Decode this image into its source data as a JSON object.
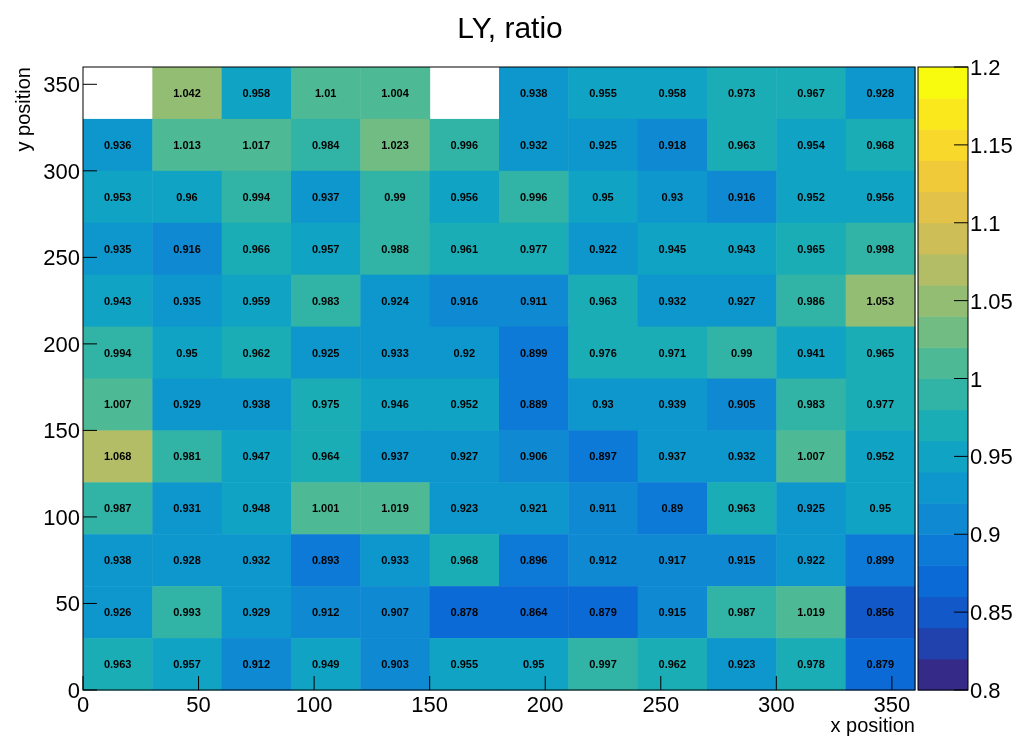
{
  "chart_data": {
    "type": "heatmap",
    "title": "LY, ratio",
    "xlabel": "x position",
    "ylabel": "y position",
    "xlim": [
      0,
      360
    ],
    "xticks": [
      0,
      50,
      100,
      150,
      200,
      250,
      300,
      350
    ],
    "ylim": [
      0,
      360
    ],
    "yticks": [
      0,
      50,
      100,
      150,
      200,
      250,
      300,
      350
    ],
    "clim": [
      0.8,
      1.2
    ],
    "cticks": [
      0.8,
      0.85,
      0.9,
      0.95,
      1,
      1.05,
      1.1,
      1.15,
      1.2
    ],
    "data_labels": true,
    "cells": [
      [
        null,
        1.042,
        0.958,
        1.01,
        1.004,
        null,
        0.938,
        0.955,
        0.958,
        0.973,
        0.967,
        0.928
      ],
      [
        0.936,
        1.013,
        1.017,
        0.984,
        1.023,
        0.996,
        0.932,
        0.925,
        0.918,
        0.963,
        0.954,
        0.968
      ],
      [
        0.953,
        0.96,
        0.994,
        0.937,
        0.99,
        0.956,
        0.996,
        0.95,
        0.93,
        0.916,
        0.952,
        0.956
      ],
      [
        0.935,
        0.916,
        0.966,
        0.957,
        0.988,
        0.961,
        0.977,
        0.922,
        0.945,
        0.943,
        0.965,
        0.998
      ],
      [
        0.943,
        0.935,
        0.959,
        0.983,
        0.924,
        0.916,
        0.911,
        0.963,
        0.932,
        0.927,
        0.986,
        1.053
      ],
      [
        0.994,
        0.95,
        0.962,
        0.925,
        0.933,
        0.92,
        0.899,
        0.976,
        0.971,
        0.99,
        0.941,
        0.965
      ],
      [
        1.007,
        0.929,
        0.938,
        0.975,
        0.946,
        0.952,
        0.889,
        0.93,
        0.939,
        0.905,
        0.983,
        0.977
      ],
      [
        1.068,
        0.981,
        0.947,
        0.964,
        0.937,
        0.927,
        0.906,
        0.897,
        0.937,
        0.932,
        1.007,
        0.952
      ],
      [
        0.987,
        0.931,
        0.948,
        1.001,
        1.019,
        0.923,
        0.921,
        0.911,
        0.89,
        0.963,
        0.925,
        0.95
      ],
      [
        0.938,
        0.928,
        0.932,
        0.893,
        0.933,
        0.968,
        0.896,
        0.912,
        0.917,
        0.915,
        0.922,
        0.899
      ],
      [
        0.926,
        0.993,
        0.929,
        0.912,
        0.907,
        0.878,
        0.864,
        0.879,
        0.915,
        0.987,
        1.019,
        0.856
      ],
      [
        0.963,
        0.957,
        0.912,
        0.949,
        0.903,
        0.955,
        0.95,
        0.997,
        0.962,
        0.923,
        0.978,
        0.879
      ]
    ]
  }
}
